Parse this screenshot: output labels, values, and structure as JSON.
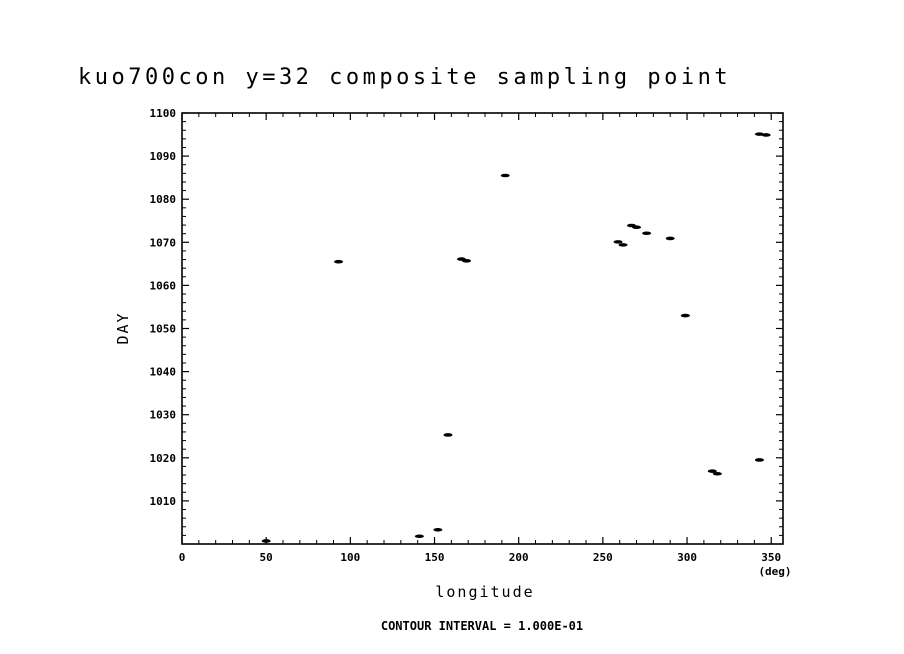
{
  "chart_data": {
    "type": "scatter",
    "title": "kuo700con y=32 composite sampling point",
    "xlabel": "longitude",
    "x_unit": "(deg)",
    "ylabel": "DAY",
    "xlim": [
      0,
      357
    ],
    "ylim": [
      1000,
      1100
    ],
    "x_ticks": [
      0,
      50,
      100,
      150,
      200,
      250,
      300,
      350
    ],
    "y_ticks": [
      1010,
      1020,
      1030,
      1040,
      1050,
      1060,
      1070,
      1080,
      1090,
      1100
    ],
    "footer": "CONTOUR INTERVAL = 1.000E-01",
    "grid": false,
    "legend": "none",
    "points": [
      {
        "x": 50,
        "y": 1000.7
      },
      {
        "x": 93,
        "y": 1065.5
      },
      {
        "x": 141,
        "y": 1001.8
      },
      {
        "x": 152,
        "y": 1003.3
      },
      {
        "x": 158,
        "y": 1025.3
      },
      {
        "x": 166,
        "y": 1066.1
      },
      {
        "x": 169,
        "y": 1065.7
      },
      {
        "x": 192,
        "y": 1085.5
      },
      {
        "x": 259,
        "y": 1070.1
      },
      {
        "x": 262,
        "y": 1069.4
      },
      {
        "x": 267,
        "y": 1073.9
      },
      {
        "x": 270,
        "y": 1073.5
      },
      {
        "x": 276,
        "y": 1072.1
      },
      {
        "x": 290,
        "y": 1070.9
      },
      {
        "x": 299,
        "y": 1053.0
      },
      {
        "x": 315,
        "y": 1016.9
      },
      {
        "x": 318,
        "y": 1016.3
      },
      {
        "x": 343,
        "y": 1019.5
      },
      {
        "x": 343,
        "y": 1095.1
      },
      {
        "x": 347,
        "y": 1094.9
      }
    ]
  }
}
